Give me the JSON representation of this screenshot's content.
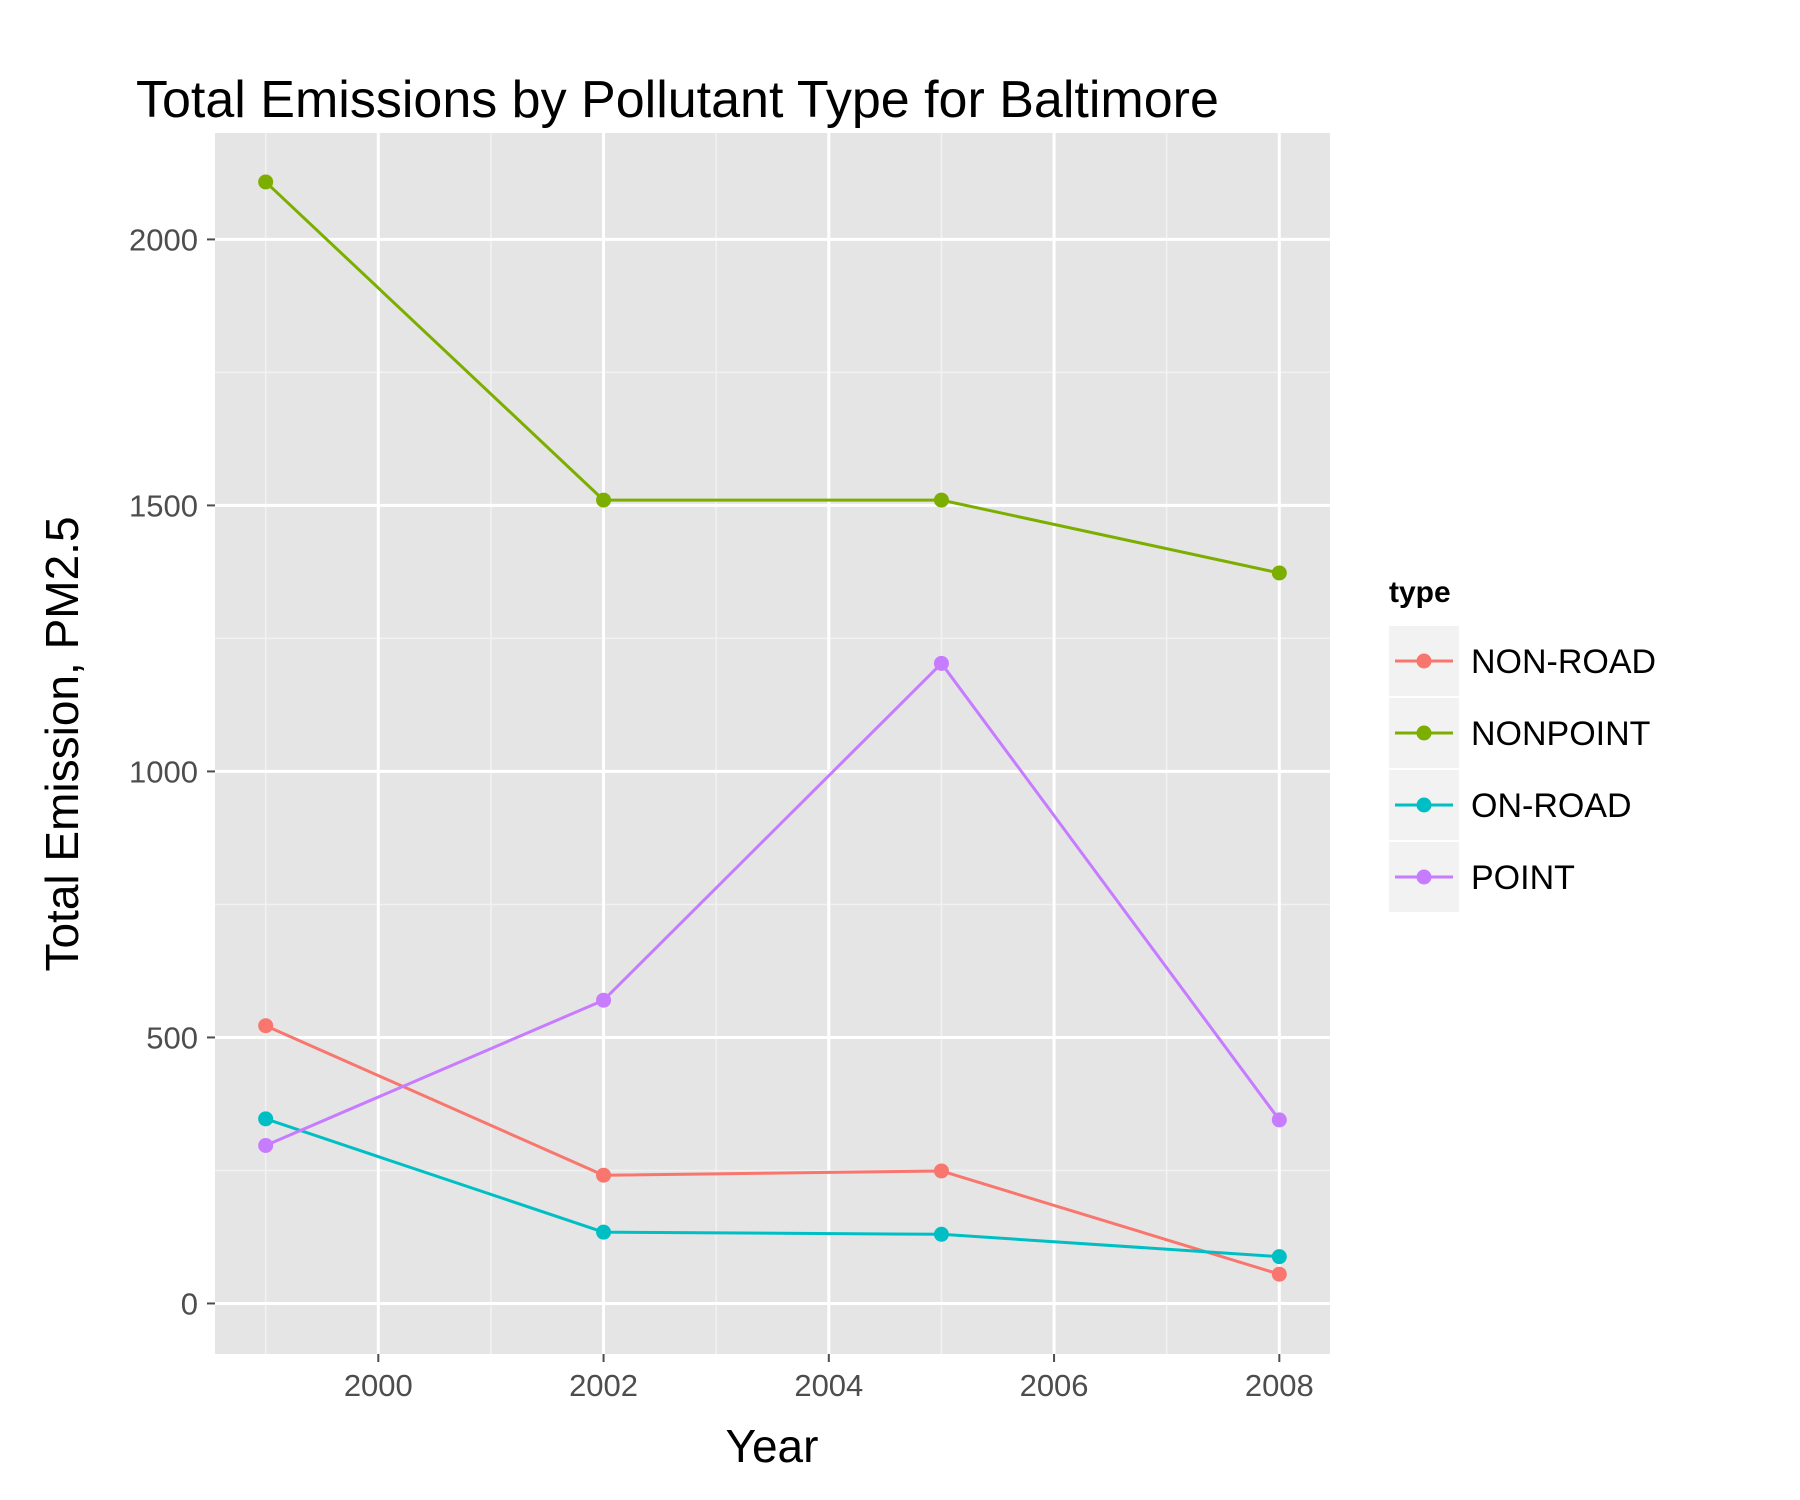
{
  "chart_data": {
    "type": "line",
    "title": "Total Emissions by Pollutant Type for Baltimore",
    "xlabel": "Year",
    "ylabel": "Total Emission, PM2.5",
    "x": [
      1999,
      2002,
      2005,
      2008
    ],
    "xlim": [
      1998.55,
      2008.45
    ],
    "ylim": [
      -95,
      2200
    ],
    "xticks": [
      2000,
      2002,
      2004,
      2006,
      2008
    ],
    "xtick_labels": [
      "2000",
      "2002",
      "2004",
      "2006",
      "2008"
    ],
    "yticks": [
      0,
      500,
      1000,
      1500,
      2000
    ],
    "ytick_labels": [
      "0",
      "500",
      "1000",
      "1500",
      "2000"
    ],
    "grid": true,
    "legend": {
      "title": "type",
      "position": "right"
    },
    "series": [
      {
        "name": "NON-ROAD",
        "color": "#F8766D",
        "values": [
          522,
          241,
          249,
          55
        ]
      },
      {
        "name": "NONPOINT",
        "color": "#7CAE00",
        "values": [
          2108,
          1510,
          1510,
          1373
        ]
      },
      {
        "name": "ON-ROAD",
        "color": "#00BFC4",
        "values": [
          347,
          134,
          130,
          88
        ]
      },
      {
        "name": "POINT",
        "color": "#C77CFF",
        "values": [
          297,
          570,
          1203,
          345
        ]
      }
    ]
  }
}
